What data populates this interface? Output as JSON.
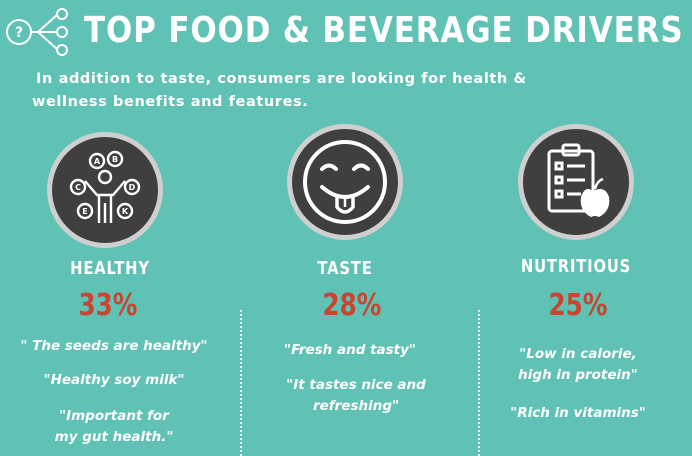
{
  "header": {
    "icon": "question-network-icon",
    "title": "TOP FOOD & BEVERAGE DRIVERS",
    "subtitle_line1": "In addition to taste, consumers are looking for health &",
    "subtitle_line2": "wellness benefits and features."
  },
  "colors": {
    "background": "#5fc2b4",
    "percent": "#c94532",
    "circle": "#3f3f3f"
  },
  "drivers": [
    {
      "icon": "vitamin-person-icon",
      "label": "HEALTHY",
      "percent": "33%",
      "quotes": [
        "\" The seeds are healthy\"",
        "\"Healthy soy milk\"",
        "\"Important for\nmy gut health.\""
      ]
    },
    {
      "icon": "smiley-tongue-icon",
      "label": "TASTE",
      "percent": "28%",
      "quotes": [
        "\"Fresh and tasty\"",
        "\"It tastes nice and\nrefreshing\""
      ]
    },
    {
      "icon": "checklist-apple-icon",
      "label": "NUTRITIOUS",
      "percent": "25%",
      "quotes": [
        "\"Low in calorie,\nhigh in protein\"",
        "\"Rich in vitamins\""
      ]
    }
  ]
}
